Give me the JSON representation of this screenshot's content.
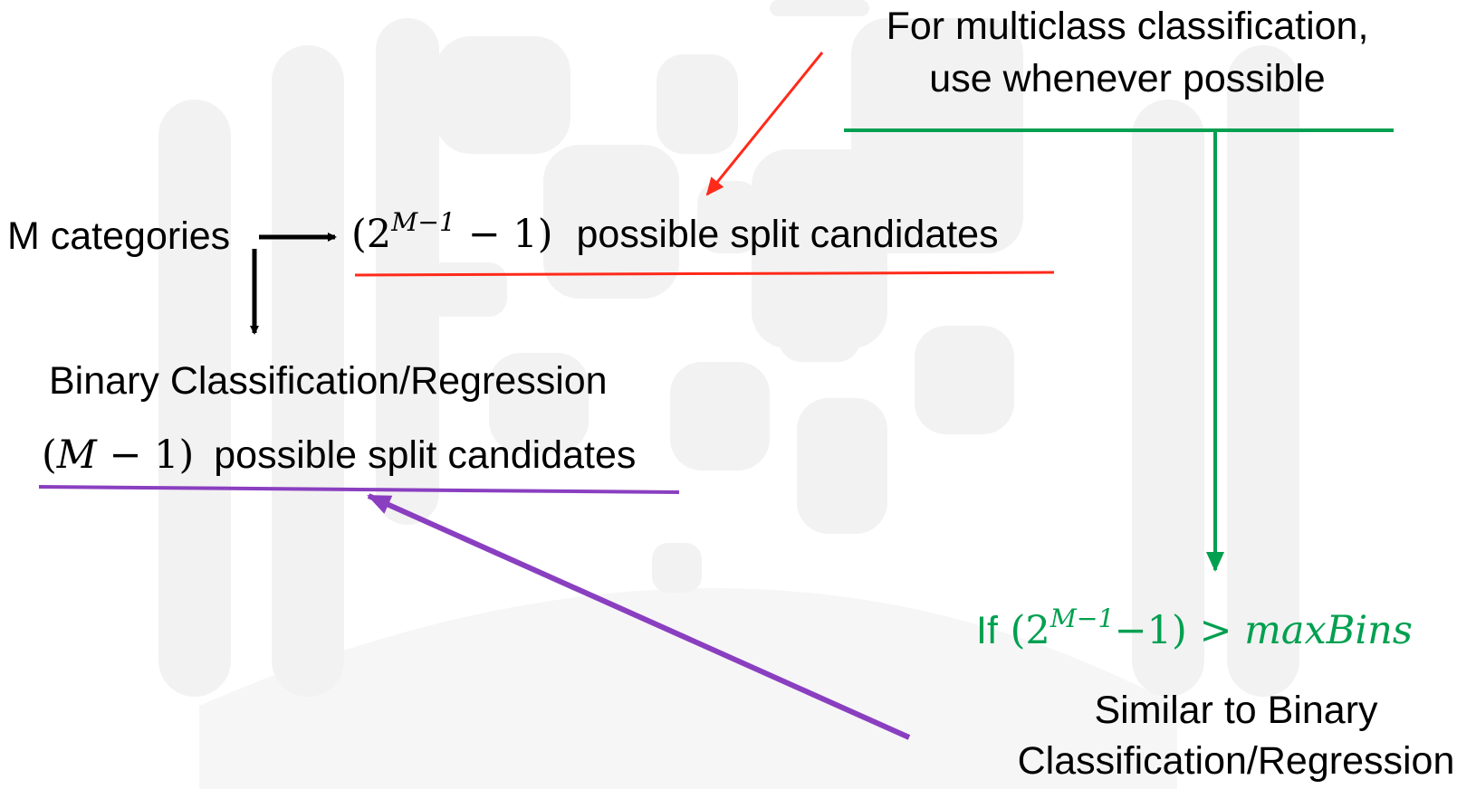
{
  "colors": {
    "red": "#ff2a1a",
    "green": "#00a050",
    "purple": "#8a3fc0",
    "black": "#000000"
  },
  "top_note": {
    "line1": "For multiclass classification,",
    "line2": "use whenever possible"
  },
  "m_categories": "M categories",
  "multiclass_split": {
    "open_paren": "(",
    "base": "2",
    "exponent": "M−1",
    "minus_one": " − 1)",
    "suffix": "possible split candidates"
  },
  "binary": {
    "title": "Binary Classification/Regression",
    "expr_open": "(",
    "expr_var": "M",
    "expr_rest": " − 1)",
    "suffix": "possible split candidates"
  },
  "condition": {
    "prefix": "If",
    "open": " (",
    "base": "2",
    "exponent": "M−1",
    "rest": "−1) > ",
    "var": "maxBins"
  },
  "similar": {
    "line1": "Similar to Binary",
    "line2": "Classification/Regression"
  }
}
